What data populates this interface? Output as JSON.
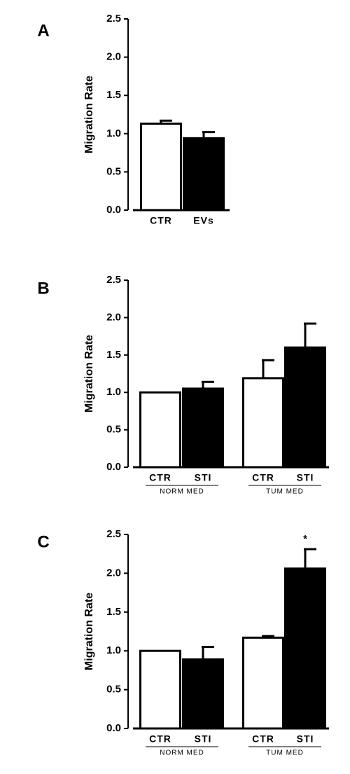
{
  "chart_data": [
    {
      "type": "bar",
      "panel_label": "A",
      "y_label": "Migration Rate",
      "categories": [
        "CTR",
        "EVs"
      ],
      "values": [
        1.13,
        0.94
      ],
      "errors": [
        0.04,
        0.08
      ],
      "colors": [
        "#ffffff",
        "#000000"
      ],
      "ylim": [
        0,
        2.5
      ],
      "yticks": [
        {
          "value": 0,
          "label": "0.0"
        },
        {
          "value": 0.5,
          "label": "0.5"
        },
        {
          "value": 1,
          "label": "1.0"
        },
        {
          "value": 1.5,
          "label": "1.5"
        },
        {
          "value": 2,
          "label": "2.0"
        },
        {
          "value": 2.5,
          "label": "2.5"
        }
      ]
    },
    {
      "type": "bar",
      "panel_label": "B",
      "y_label": "Migration Rate",
      "categories": [
        "CTR",
        "STI",
        "CTR",
        "STI"
      ],
      "values": [
        1.0,
        1.05,
        1.19,
        1.6
      ],
      "errors": [
        null,
        0.09,
        0.24,
        0.32
      ],
      "colors": [
        "#ffffff",
        "#000000",
        "#ffffff",
        "#000000"
      ],
      "group_labels": [
        "NORM MED",
        "TUM MED"
      ],
      "ylim": [
        0,
        2.5
      ],
      "yticks": [
        {
          "value": 0,
          "label": "0.0"
        },
        {
          "value": 0.5,
          "label": "0.5"
        },
        {
          "value": 1,
          "label": "1.0"
        },
        {
          "value": 1.5,
          "label": "1.5"
        },
        {
          "value": 2,
          "label": "2.0"
        },
        {
          "value": 2.5,
          "label": "2.5"
        }
      ]
    },
    {
      "type": "bar",
      "panel_label": "C",
      "y_label": "Migration Rate",
      "categories": [
        "CTR",
        "STI",
        "CTR",
        "STI"
      ],
      "values": [
        1.0,
        0.89,
        1.17,
        2.06
      ],
      "errors": [
        null,
        0.16,
        0.02,
        0.25
      ],
      "colors": [
        "#ffffff",
        "#000000",
        "#ffffff",
        "#000000"
      ],
      "annotations": [
        null,
        null,
        null,
        "*"
      ],
      "group_labels": [
        "NORM MED",
        "TUM MED"
      ],
      "ylim": [
        0,
        2.5
      ],
      "yticks": [
        {
          "value": 0,
          "label": "0.0"
        },
        {
          "value": 0.5,
          "label": "0.5"
        },
        {
          "value": 1,
          "label": "1.0"
        },
        {
          "value": 1.5,
          "label": "1.5"
        },
        {
          "value": 2,
          "label": "2.0"
        },
        {
          "value": 2.5,
          "label": "2.5"
        }
      ]
    }
  ]
}
